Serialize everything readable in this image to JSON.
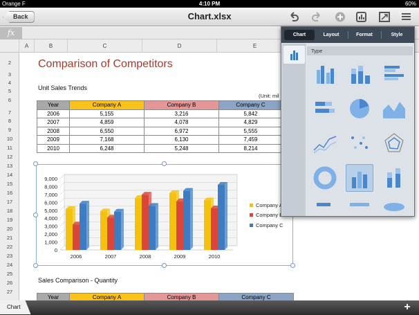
{
  "status": {
    "carrier": "Orange F",
    "time": "4:10 PM",
    "battery": "60%"
  },
  "toolbar": {
    "back_label": "Back",
    "title": "Chart.xlsx"
  },
  "fxbar": {
    "label": "fx"
  },
  "columns": [
    "A",
    "B",
    "C",
    "D",
    "E"
  ],
  "rows": [
    "2",
    "3",
    "4",
    "5",
    "6",
    "7",
    "8",
    "9",
    "10",
    "11",
    "12",
    "13",
    "14",
    "15",
    "16",
    "17",
    "18",
    "19",
    "20",
    "21",
    "22",
    "23",
    "24",
    "25",
    "26",
    "27"
  ],
  "sheet": {
    "title": "Comparison of Competitors",
    "subtitle1": "Unit Sales Trends",
    "unit_label": "(Unit: mil",
    "subtitle2": "Sales Comparison - Quantity",
    "table_headers": [
      "Year",
      "Company A",
      "Company B",
      "Company C"
    ],
    "table_rows": [
      [
        "2006",
        "5,155",
        "3,216",
        "5,842"
      ],
      [
        "2007",
        "4,859",
        "4,078",
        "4,829"
      ],
      [
        "2008",
        "6,550",
        "6,972",
        "5,555"
      ],
      [
        "2009",
        "7,168",
        "6,130",
        "7,459"
      ],
      [
        "2010",
        "6,248",
        "5,248",
        "8,214"
      ]
    ],
    "bottom_headers": [
      "Year",
      "Company A",
      "Company B",
      "Company C"
    ]
  },
  "chart_data": {
    "type": "bar",
    "categories": [
      "2006",
      "2007",
      "2008",
      "2009",
      "2010"
    ],
    "series": [
      {
        "name": "Company A",
        "values": [
          5155,
          4859,
          6550,
          7168,
          6248
        ],
        "color": "#f4c20e"
      },
      {
        "name": "Company B",
        "values": [
          3216,
          4078,
          6972,
          6130,
          5248
        ],
        "color": "#d9463a"
      },
      {
        "name": "Company C",
        "values": [
          5842,
          4829,
          5555,
          7459,
          8214
        ],
        "color": "#3d7cc2"
      }
    ],
    "ylim": [
      0,
      9000
    ],
    "yticks": [
      "0",
      "1,000",
      "2,000",
      "3,000",
      "4,000",
      "5,000",
      "6,000",
      "7,000",
      "8,000",
      "9,000"
    ],
    "grid": true,
    "legend": "right"
  },
  "panel": {
    "tabs": [
      "Chart",
      "Layout",
      "Format",
      "Style"
    ],
    "selected_tab": "Chart",
    "section_label": "Type",
    "chart_types": [
      "clustered-column",
      "stacked-column",
      "bar",
      "stacked-bar",
      "pie",
      "area",
      "line-markers",
      "scatter",
      "radar",
      "doughnut",
      "3d-column",
      "3d-stacked-column",
      "3d-bar",
      "3d-stacked-bar",
      "3d-pie"
    ]
  },
  "bottom": {
    "sheet_tab": "Chart",
    "add_label": "+"
  },
  "colors": {
    "header_a": "#fbc21a",
    "header_b": "#e39796",
    "header_c": "#8ca4c6",
    "header_year": "#a9a9a9",
    "title": "#a83a2c"
  }
}
